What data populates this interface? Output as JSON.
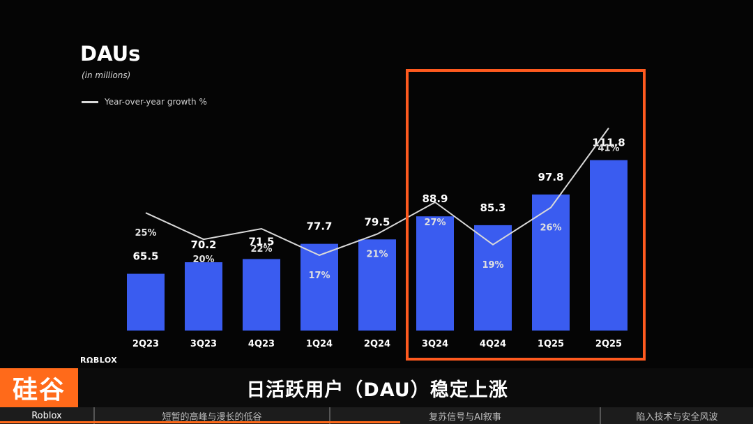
{
  "slide": {
    "title": "DAUs",
    "subtitle": "(in millions)",
    "legend_label": "Year-over-year growth %",
    "logo": "RΩBLOX"
  },
  "chart_data": {
    "type": "bar",
    "title": "DAUs",
    "subtitle": "(in millions)",
    "categories": [
      "2Q23",
      "3Q23",
      "4Q23",
      "1Q24",
      "2Q24",
      "3Q24",
      "4Q24",
      "1Q25",
      "2Q25"
    ],
    "series": [
      {
        "type": "bar",
        "values": [
          65.5,
          70.2,
          71.5,
          77.7,
          79.5,
          88.9,
          85.3,
          97.8,
          111.8
        ],
        "color": "#3a5cf0"
      },
      {
        "name": "Year-over-year growth %",
        "type": "line",
        "values": [
          25,
          20,
          22,
          17,
          21,
          27,
          19,
          26,
          41
        ],
        "value_labels": [
          "25%",
          "20%",
          "22%",
          "17%",
          "21%",
          "27%",
          "19%",
          "26%",
          "41%"
        ],
        "color": "#d9d9d9"
      }
    ],
    "legend": "top-left",
    "grid": false,
    "highlighted_categories": [
      "3Q24",
      "4Q24",
      "1Q25",
      "2Q25"
    ],
    "highlight_color": "#ff5a1f"
  },
  "caption": {
    "brand": "硅谷",
    "text": "日活跃用户（DAU）稳定上涨"
  },
  "nav": {
    "items": [
      "Roblox",
      "短暂的高峰与漫长的低谷",
      "复苏信号与AI叙事",
      "陷入技术与安全风波"
    ]
  },
  "colors": {
    "accent": "#ff6a1a",
    "bar": "#3a5cf0",
    "line": "#d9d9d9"
  }
}
